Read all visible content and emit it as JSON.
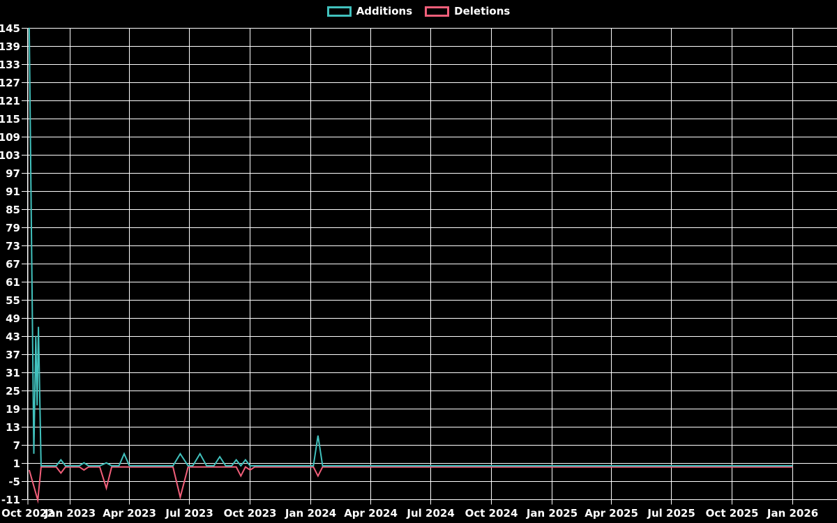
{
  "chart_data": {
    "type": "line",
    "title": "",
    "background_color": "#000000",
    "grid": true,
    "grid_color": "#ffffff",
    "text_color": "#ffffff",
    "legend_position": "top-center",
    "x_axis": {
      "type": "time",
      "start_date": "2022-10-29",
      "end_date_visible": "2026-01-01",
      "ticks": [
        {
          "date": "2022-10-29",
          "label": "Oct 2022"
        },
        {
          "date": "2023-01-01",
          "label": "Jan 2023"
        },
        {
          "date": "2023-04-01",
          "label": "Apr 2023"
        },
        {
          "date": "2023-07-01",
          "label": "Jul 2023"
        },
        {
          "date": "2023-10-01",
          "label": "Oct 2023"
        },
        {
          "date": "2024-01-01",
          "label": "Jan 2024"
        },
        {
          "date": "2024-04-01",
          "label": "Apr 2024"
        },
        {
          "date": "2024-07-01",
          "label": "Jul 2024"
        },
        {
          "date": "2024-10-01",
          "label": "Oct 2024"
        },
        {
          "date": "2025-01-01",
          "label": "Jan 2025"
        },
        {
          "date": "2025-04-01",
          "label": "Apr 2025"
        },
        {
          "date": "2025-07-01",
          "label": "Jul 2025"
        },
        {
          "date": "2025-10-01",
          "label": "Oct 2025"
        },
        {
          "date": "2026-01-01",
          "label": "Jan 2026"
        }
      ]
    },
    "y_axis": {
      "min": -11,
      "max": 145,
      "step": 6,
      "tick_labels": [
        "-11",
        "-5",
        "1",
        "7",
        "13",
        "19",
        "25",
        "31",
        "37",
        "43",
        "49",
        "55",
        "61",
        "67",
        "73",
        "79",
        "85",
        "91",
        "97",
        "103",
        "109",
        "115",
        "121",
        "127",
        "133",
        "139",
        "145"
      ]
    },
    "series": [
      {
        "name": "Additions",
        "color": "#41c1bd",
        "points": [
          [
            "2022-10-31",
            145
          ],
          [
            "2022-11-07",
            4
          ],
          [
            "2022-11-10",
            43
          ],
          [
            "2022-11-12",
            20
          ],
          [
            "2022-11-14",
            46
          ],
          [
            "2022-11-18",
            0
          ],
          [
            "2022-12-11",
            0
          ],
          [
            "2022-12-18",
            2
          ],
          [
            "2022-12-25",
            0
          ],
          [
            "2023-01-15",
            0
          ],
          [
            "2023-01-22",
            1
          ],
          [
            "2023-01-29",
            0
          ],
          [
            "2023-02-15",
            0
          ],
          [
            "2023-02-25",
            1
          ],
          [
            "2023-03-05",
            0
          ],
          [
            "2023-03-16",
            0
          ],
          [
            "2023-03-24",
            4
          ],
          [
            "2023-04-01",
            0
          ],
          [
            "2023-06-06",
            0
          ],
          [
            "2023-06-17",
            4
          ],
          [
            "2023-06-29",
            0
          ],
          [
            "2023-07-06",
            0
          ],
          [
            "2023-07-17",
            4
          ],
          [
            "2023-07-27",
            0
          ],
          [
            "2023-08-07",
            0
          ],
          [
            "2023-08-16",
            3
          ],
          [
            "2023-08-25",
            0
          ],
          [
            "2023-09-03",
            0
          ],
          [
            "2023-09-10",
            2
          ],
          [
            "2023-09-17",
            0
          ],
          [
            "2023-09-24",
            2
          ],
          [
            "2023-10-01",
            0
          ],
          [
            "2024-01-05",
            0
          ],
          [
            "2024-01-12",
            10
          ],
          [
            "2024-01-19",
            0
          ],
          [
            "2026-01-01",
            0
          ]
        ]
      },
      {
        "name": "Deletions",
        "color": "#f25f7a",
        "points": [
          [
            "2022-10-31",
            -1
          ],
          [
            "2022-11-13",
            -11
          ],
          [
            "2022-11-18",
            0
          ],
          [
            "2022-12-11",
            0
          ],
          [
            "2022-12-18",
            -2
          ],
          [
            "2022-12-25",
            0
          ],
          [
            "2023-01-15",
            0
          ],
          [
            "2023-01-22",
            -1
          ],
          [
            "2023-01-29",
            0
          ],
          [
            "2023-02-15",
            0
          ],
          [
            "2023-02-25",
            -7
          ],
          [
            "2023-03-05",
            0
          ],
          [
            "2023-06-06",
            0
          ],
          [
            "2023-06-17",
            -10
          ],
          [
            "2023-06-29",
            0
          ],
          [
            "2023-09-10",
            0
          ],
          [
            "2023-09-17",
            -3
          ],
          [
            "2023-09-24",
            0
          ],
          [
            "2023-10-01",
            -1
          ],
          [
            "2023-10-08",
            0
          ],
          [
            "2024-01-05",
            0
          ],
          [
            "2024-01-12",
            -3
          ],
          [
            "2024-01-19",
            0
          ],
          [
            "2026-01-01",
            0
          ]
        ]
      }
    ]
  }
}
